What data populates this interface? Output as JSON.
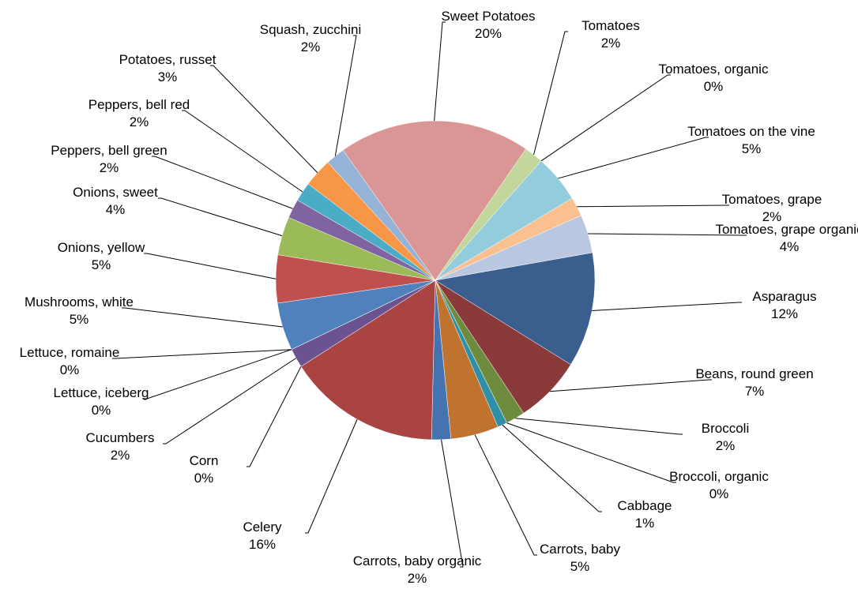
{
  "chart_data": {
    "type": "pie",
    "categories": [
      "Asparagus",
      "Beans, round green",
      "Broccoli",
      "Broccoli, organic",
      "Cabbage",
      "Carrots, baby",
      "Carrots, baby organic",
      "Celery",
      "Corn",
      "Cucumbers",
      "Lettuce, iceberg",
      "Lettuce, romaine",
      "Mushrooms, white",
      "Onions, yellow",
      "Onions, sweet",
      "Peppers, bell green",
      "Peppers, bell red",
      "Potatoes, russet",
      "Squash, zucchini",
      "Sweet Potatoes",
      "Tomatoes",
      "Tomatoes, organic",
      "Tomatoes on the vine",
      "Tomatoes, grape",
      "Tomatoes, grape organic"
    ],
    "values": [
      12,
      7,
      2,
      0,
      1,
      5,
      2,
      16,
      0,
      2,
      0,
      0,
      5,
      5,
      4,
      2,
      2,
      3,
      2,
      20,
      2,
      0,
      5,
      2,
      4
    ],
    "value_labels": [
      "12%",
      "7%",
      "2%",
      "0%",
      "1%",
      "5%",
      "2%",
      "16%",
      "0%",
      "2%",
      "0%",
      "0%",
      "5%",
      "5%",
      "4%",
      "2%",
      "2%",
      "3%",
      "2%",
      "20%",
      "2%",
      "0%",
      "5%",
      "2%",
      "4%"
    ],
    "colors": [
      "#3a5f8f",
      "#8b3a3a",
      "#6e8b3d",
      "#5c4a7a",
      "#2f8ea8",
      "#c0722f",
      "#4473b0",
      "#a94442",
      "#8aa84f",
      "#6b5290",
      "#3aa0b8",
      "#f79646",
      "#4f81bd",
      "#c0504d",
      "#9bbb59",
      "#8064a2",
      "#4bacc6",
      "#f79646",
      "#95b3d7",
      "#d99694",
      "#c3d69b",
      "#b3a2c7",
      "#93cddd",
      "#fac090",
      "#b9c7e0"
    ]
  }
}
